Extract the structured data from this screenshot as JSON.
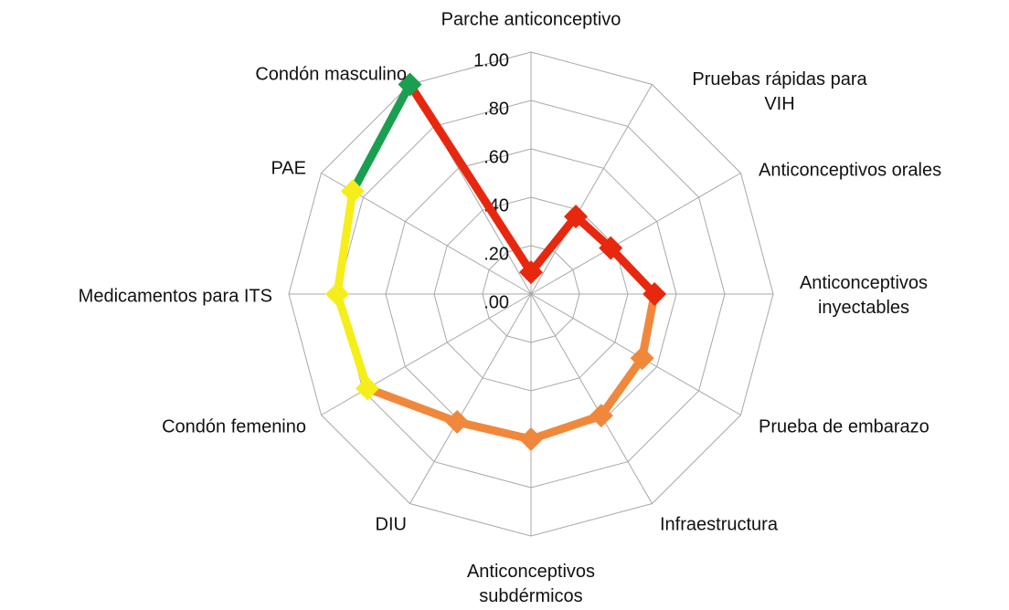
{
  "chart_data": {
    "type": "radar",
    "categories": [
      "Parche anticonceptivo",
      "Pruebas rápidas para\nVIH",
      "Anticonceptivos orales",
      "Anticonceptivos\ninyectables",
      "Prueba de embarazo",
      "Infraestructura",
      "Anticonceptivos\nsubdérmicos",
      "DIU",
      "Condón femenino",
      "Medicamentos para ITS",
      "PAE",
      "Condón masculino"
    ],
    "values": [
      0.09,
      0.37,
      0.38,
      0.51,
      0.53,
      0.58,
      0.6,
      0.61,
      0.78,
      0.8,
      0.85,
      1.0
    ],
    "point_colors": [
      "#e8280e",
      "#e8280e",
      "#e8280e",
      "#e8280e",
      "#f0883c",
      "#f0883c",
      "#f0883c",
      "#f0883c",
      "#f5ee1a",
      "#f5ee1a",
      "#f5ee1a",
      "#1a9f50"
    ],
    "segment_colors": [
      "#e8280e",
      "#e8280e",
      "#e8280e",
      "#f0883c",
      "#f0883c",
      "#f0883c",
      "#f0883c",
      "#f0883c",
      "#f5ee1a",
      "#f5ee1a",
      "#1a9f50",
      "#e8280e"
    ],
    "ylim": [
      0,
      1
    ],
    "yticks": [
      {
        "value": 0,
        "label": ".00"
      },
      {
        "value": 0.2,
        "label": ".20"
      },
      {
        "value": 0.4,
        "label": ".40"
      },
      {
        "value": 0.6,
        "label": ".60"
      },
      {
        "value": 0.8,
        "label": ".80"
      },
      {
        "value": 1,
        "label": "1.00"
      }
    ],
    "grid": true
  }
}
